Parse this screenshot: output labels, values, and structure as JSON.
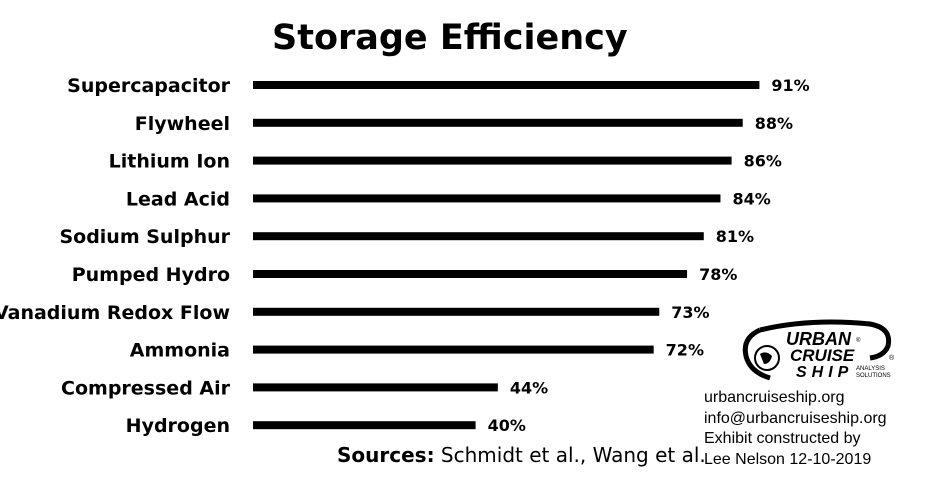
{
  "chart_data": {
    "type": "bar",
    "orientation": "horizontal",
    "title": "Storage Efficiency",
    "categories": [
      "Supercapacitor",
      "Flywheel",
      "Lithium Ion",
      "Lead Acid",
      "Sodium Sulphur",
      "Pumped Hydro",
      "Vanadium Redox Flow",
      "Ammonia",
      "Compressed Air",
      "Hydrogen"
    ],
    "values": [
      91,
      88,
      86,
      84,
      81,
      78,
      73,
      72,
      44,
      40
    ],
    "value_labels": [
      "91%",
      "88%",
      "86%",
      "84%",
      "81%",
      "78%",
      "73%",
      "72%",
      "44%",
      "40%"
    ],
    "xlim": [
      0,
      100
    ],
    "grid": false,
    "bar_color": "#000000"
  },
  "sources": {
    "label": "Sources:",
    "text": " Schmidt et al., Wang et al."
  },
  "logo": {
    "line1": "URBAN",
    "line2": "CRUISE",
    "line3": "SHIP",
    "sub1": "ANALYSIS",
    "sub2": "SOLUTIONS",
    "mark": "®"
  },
  "credits": {
    "website": "urbancruiseship.org",
    "email": "info@urbancruiseship.org",
    "line3": "Exhibit constructed by",
    "line4": "Lee Nelson 12-10-2019"
  }
}
